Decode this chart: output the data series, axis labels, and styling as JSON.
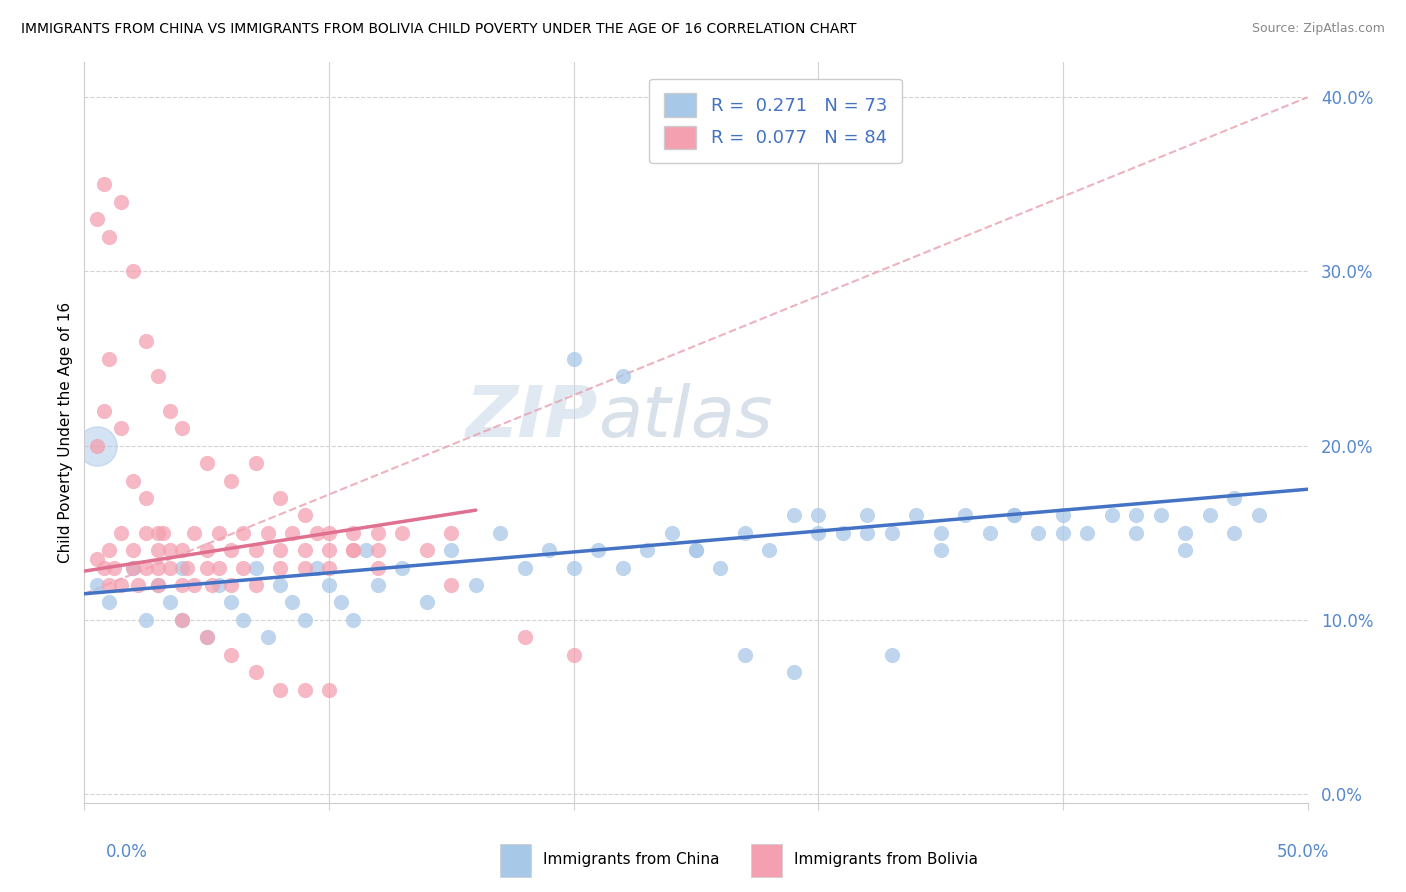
{
  "title": "IMMIGRANTS FROM CHINA VS IMMIGRANTS FROM BOLIVIA CHILD POVERTY UNDER THE AGE OF 16 CORRELATION CHART",
  "source": "Source: ZipAtlas.com",
  "ylabel": "Child Poverty Under the Age of 16",
  "china_color": "#a8c8e8",
  "bolivia_color": "#f4a0b0",
  "china_line_color": "#4472c4",
  "bolivia_line_color": "#e07090",
  "dashed_color": "#d0a0a8",
  "china_R": 0.271,
  "china_N": 73,
  "bolivia_R": 0.077,
  "bolivia_N": 84,
  "legend_label_china": "Immigrants from China",
  "legend_label_bolivia": "Immigrants from Bolivia",
  "watermark_zip": "ZIP",
  "watermark_atlas": "atlas",
  "xlim": [
    0.0,
    0.5
  ],
  "ylim": [
    -0.005,
    0.42
  ],
  "ytick_vals": [
    0.0,
    0.1,
    0.2,
    0.3,
    0.4
  ],
  "ytick_labels": [
    "0.0%",
    "10.0%",
    "20.0%",
    "30.0%",
    "40.0%"
  ],
  "china_x": [
    0.005,
    0.01,
    0.02,
    0.025,
    0.03,
    0.035,
    0.04,
    0.04,
    0.05,
    0.055,
    0.06,
    0.065,
    0.07,
    0.075,
    0.08,
    0.085,
    0.09,
    0.095,
    0.1,
    0.105,
    0.11,
    0.115,
    0.12,
    0.13,
    0.14,
    0.15,
    0.16,
    0.17,
    0.18,
    0.19,
    0.2,
    0.21,
    0.22,
    0.22,
    0.23,
    0.24,
    0.25,
    0.26,
    0.27,
    0.28,
    0.29,
    0.3,
    0.31,
    0.32,
    0.33,
    0.34,
    0.35,
    0.36,
    0.37,
    0.38,
    0.39,
    0.4,
    0.41,
    0.42,
    0.43,
    0.44,
    0.45,
    0.46,
    0.47,
    0.48,
    0.2,
    0.25,
    0.3,
    0.32,
    0.35,
    0.38,
    0.4,
    0.43,
    0.45,
    0.47,
    0.27,
    0.29,
    0.33
  ],
  "china_y": [
    0.12,
    0.11,
    0.13,
    0.1,
    0.12,
    0.11,
    0.1,
    0.13,
    0.09,
    0.12,
    0.11,
    0.1,
    0.13,
    0.09,
    0.12,
    0.11,
    0.1,
    0.13,
    0.12,
    0.11,
    0.1,
    0.14,
    0.12,
    0.13,
    0.11,
    0.14,
    0.12,
    0.15,
    0.13,
    0.14,
    0.25,
    0.14,
    0.24,
    0.13,
    0.14,
    0.15,
    0.14,
    0.13,
    0.15,
    0.14,
    0.16,
    0.15,
    0.15,
    0.16,
    0.15,
    0.16,
    0.15,
    0.16,
    0.15,
    0.16,
    0.15,
    0.16,
    0.15,
    0.16,
    0.15,
    0.16,
    0.15,
    0.16,
    0.17,
    0.16,
    0.13,
    0.14,
    0.16,
    0.15,
    0.14,
    0.16,
    0.15,
    0.16,
    0.14,
    0.15,
    0.08,
    0.07,
    0.08
  ],
  "bolivia_x": [
    0.005,
    0.008,
    0.01,
    0.01,
    0.012,
    0.015,
    0.015,
    0.02,
    0.02,
    0.022,
    0.025,
    0.025,
    0.03,
    0.03,
    0.03,
    0.032,
    0.035,
    0.035,
    0.04,
    0.04,
    0.042,
    0.045,
    0.045,
    0.05,
    0.05,
    0.052,
    0.055,
    0.055,
    0.06,
    0.06,
    0.065,
    0.065,
    0.07,
    0.07,
    0.075,
    0.08,
    0.08,
    0.085,
    0.09,
    0.09,
    0.095,
    0.1,
    0.1,
    0.11,
    0.11,
    0.12,
    0.12,
    0.13,
    0.14,
    0.15,
    0.005,
    0.008,
    0.01,
    0.015,
    0.02,
    0.025,
    0.03,
    0.035,
    0.04,
    0.05,
    0.06,
    0.07,
    0.08,
    0.09,
    0.1,
    0.11,
    0.12,
    0.15,
    0.18,
    0.2,
    0.005,
    0.008,
    0.01,
    0.015,
    0.02,
    0.025,
    0.03,
    0.04,
    0.05,
    0.06,
    0.07,
    0.08,
    0.09,
    0.1
  ],
  "bolivia_y": [
    0.135,
    0.13,
    0.12,
    0.14,
    0.13,
    0.15,
    0.12,
    0.14,
    0.13,
    0.12,
    0.15,
    0.13,
    0.14,
    0.13,
    0.12,
    0.15,
    0.14,
    0.13,
    0.14,
    0.12,
    0.13,
    0.15,
    0.12,
    0.14,
    0.13,
    0.12,
    0.15,
    0.13,
    0.14,
    0.12,
    0.15,
    0.13,
    0.14,
    0.12,
    0.15,
    0.14,
    0.13,
    0.15,
    0.14,
    0.13,
    0.15,
    0.14,
    0.13,
    0.15,
    0.14,
    0.15,
    0.14,
    0.15,
    0.14,
    0.15,
    0.33,
    0.35,
    0.32,
    0.34,
    0.3,
    0.26,
    0.24,
    0.22,
    0.21,
    0.19,
    0.18,
    0.19,
    0.17,
    0.16,
    0.15,
    0.14,
    0.13,
    0.12,
    0.09,
    0.08,
    0.2,
    0.22,
    0.25,
    0.21,
    0.18,
    0.17,
    0.15,
    0.1,
    0.09,
    0.08,
    0.07,
    0.06,
    0.06,
    0.06
  ],
  "china_line_x": [
    0.0,
    0.5
  ],
  "china_line_y": [
    0.115,
    0.175
  ],
  "bolivia_line_x": [
    0.0,
    0.16
  ],
  "bolivia_line_y": [
    0.128,
    0.163
  ],
  "dashed_line_x": [
    0.0,
    0.5
  ],
  "dashed_line_y": [
    0.115,
    0.4
  ]
}
